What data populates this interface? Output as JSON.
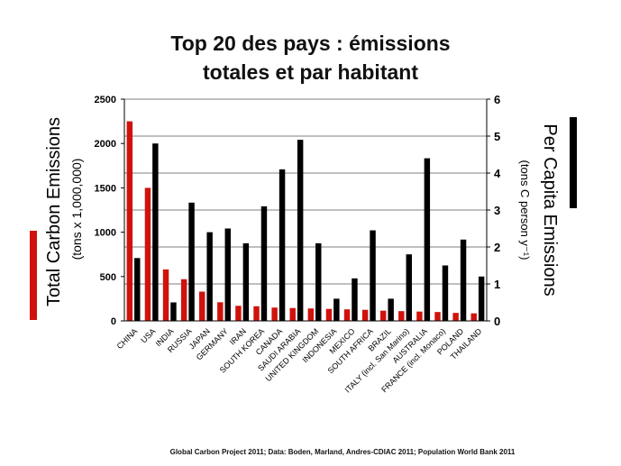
{
  "title_line1": "Top 20 des pays : émissions",
  "title_line2": "totales et par habitant",
  "source": "Global Carbon Project 2011; Data: Boden, Marland, Andres-CDIAC 2011; Population World Bank 2011",
  "colors": {
    "total": "#d0120c",
    "per_capita": "#000000"
  },
  "chart_data": {
    "type": "bar",
    "left_axis": {
      "title": "Total Carbon Emissions",
      "subtitle": "(tons x 1,000,000)",
      "ylim": [
        0,
        2500
      ],
      "ticks": [
        0,
        500,
        1000,
        1500,
        2000,
        2500
      ],
      "tick_labels": [
        "0",
        "500",
        "1000",
        "1500",
        "2000",
        "2500"
      ]
    },
    "right_axis": {
      "title": "Per Capita Emissions",
      "subtitle": "(tons C person y⁻¹)",
      "ylim": [
        0,
        6
      ],
      "ticks": [
        0,
        1,
        2,
        3,
        4,
        5,
        6
      ],
      "tick_labels": [
        "0",
        "1",
        "2",
        "3",
        "4",
        "5",
        "6"
      ]
    },
    "grid": true,
    "categories": [
      "CHINA",
      "USA",
      "INDIA",
      "RUSSIA",
      "JAPAN",
      "GERMANY",
      "IRAN",
      "SOUTH KOREA",
      "CANADA",
      "SAUDI ARABIA",
      "UNITED KINGDOM",
      "INDONESIA",
      "MEXICO",
      "SOUTH AFRICA",
      "BRAZIL",
      "ITALY (incl. San Marino)",
      "AUSTRALIA",
      "FRANCE (incl. Monaco)",
      "POLAND",
      "THAILAND"
    ],
    "series": [
      {
        "axis": "left",
        "values": [
          2250,
          1500,
          580,
          470,
          330,
          210,
          170,
          165,
          150,
          145,
          140,
          135,
          130,
          125,
          115,
          110,
          105,
          100,
          90,
          85
        ]
      },
      {
        "axis": "right",
        "values": [
          1.7,
          4.8,
          0.5,
          3.2,
          2.4,
          2.5,
          2.1,
          3.1,
          4.1,
          4.9,
          2.1,
          0.6,
          1.15,
          2.45,
          0.6,
          1.8,
          4.4,
          1.5,
          2.2,
          1.2
        ]
      }
    ]
  }
}
